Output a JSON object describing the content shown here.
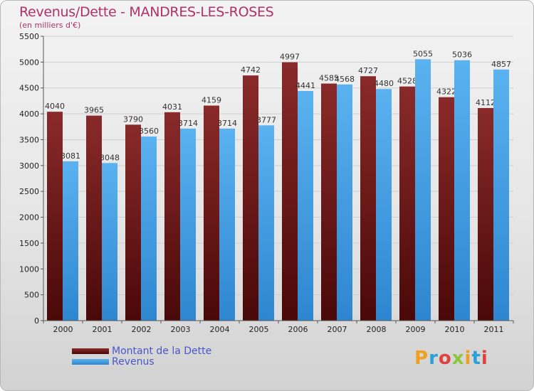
{
  "chart_data": {
    "type": "bar",
    "title": "Revenus/Dette - MANDRES-LES-ROSES",
    "subtitle": "(en milliers d'€)",
    "categories": [
      "2000",
      "2001",
      "2002",
      "2003",
      "2004",
      "2005",
      "2006",
      "2007",
      "2008",
      "2009",
      "2010",
      "2011"
    ],
    "series": [
      {
        "name": "Montant de la Dette",
        "color": "#7a1f1f",
        "values": [
          4040,
          3965,
          3790,
          4031,
          4159,
          4742,
          4997,
          4585,
          4727,
          4528,
          4322,
          4112
        ]
      },
      {
        "name": "Revenus",
        "color": "#4aa3e8",
        "values": [
          3081,
          3048,
          3560,
          3714,
          3714,
          3777,
          4441,
          4568,
          4480,
          5055,
          5036,
          4857
        ]
      }
    ],
    "ylim": [
      0,
      5500
    ],
    "yticks": [
      0,
      500,
      1000,
      1500,
      2000,
      2500,
      3000,
      3500,
      4000,
      4500,
      5000,
      5500
    ],
    "grid": true,
    "legend": "bottom-left"
  },
  "logo": {
    "text": "Proxiti",
    "colors": [
      "#f0a020",
      "#2a9fd8",
      "#e04040",
      "#8cc63e",
      "#f0a020",
      "#2a9fd8",
      "#e04040"
    ]
  }
}
